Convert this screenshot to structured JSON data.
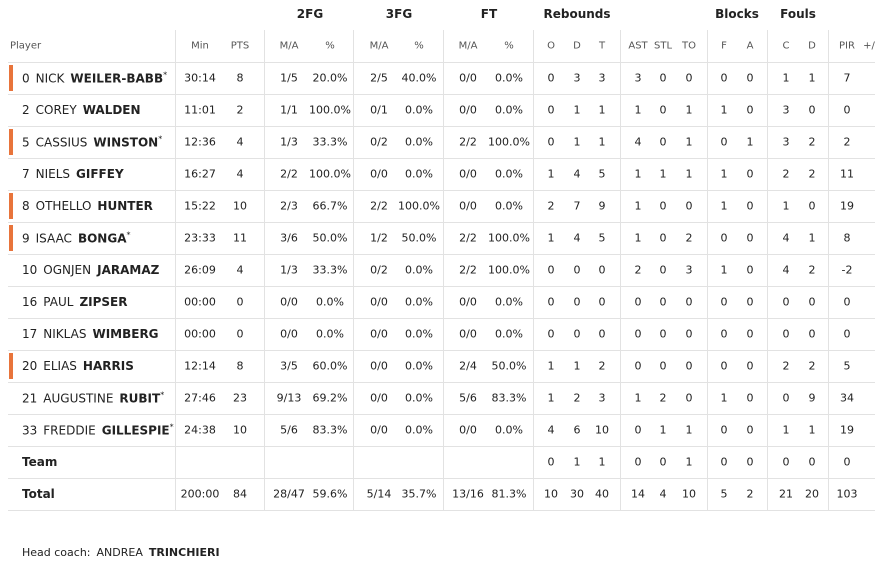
{
  "groups": [
    "2FG",
    "3FG",
    "FT",
    "Rebounds",
    "Blocks",
    "Fouls"
  ],
  "columns": [
    "Player",
    "Min",
    "PTS",
    "M/A",
    "%",
    "M/A",
    "%",
    "M/A",
    "%",
    "O",
    "D",
    "T",
    "AST",
    "STL",
    "TO",
    "F",
    "A",
    "C",
    "D",
    "PIR",
    "+/"
  ],
  "rows": [
    {
      "number": "0",
      "first": "NICK",
      "last": "WEILER-BABB",
      "marker": "*",
      "highlight": true,
      "cells": [
        "30:14",
        "8",
        "1/5",
        "20.0%",
        "2/5",
        "40.0%",
        "0/0",
        "0.0%",
        "0",
        "3",
        "3",
        "3",
        "0",
        "0",
        "0",
        "0",
        "1",
        "1",
        "7"
      ]
    },
    {
      "number": "2",
      "first": "COREY",
      "last": "WALDEN",
      "highlight": false,
      "cells": [
        "11:01",
        "2",
        "1/1",
        "100.0%",
        "0/1",
        "0.0%",
        "0/0",
        "0.0%",
        "0",
        "1",
        "1",
        "1",
        "0",
        "1",
        "1",
        "0",
        "3",
        "0",
        "0"
      ]
    },
    {
      "number": "5",
      "first": "CASSIUS",
      "last": "WINSTON",
      "marker": "*",
      "highlight": true,
      "cells": [
        "12:36",
        "4",
        "1/3",
        "33.3%",
        "0/2",
        "0.0%",
        "2/2",
        "100.0%",
        "0",
        "1",
        "1",
        "4",
        "0",
        "1",
        "0",
        "1",
        "3",
        "2",
        "2"
      ]
    },
    {
      "number": "7",
      "first": "NIELS",
      "last": "GIFFEY",
      "highlight": false,
      "cells": [
        "16:27",
        "4",
        "2/2",
        "100.0%",
        "0/0",
        "0.0%",
        "0/0",
        "0.0%",
        "1",
        "4",
        "5",
        "1",
        "1",
        "1",
        "1",
        "0",
        "2",
        "2",
        "11"
      ]
    },
    {
      "number": "8",
      "first": "OTHELLO",
      "last": "HUNTER",
      "highlight": true,
      "cells": [
        "15:22",
        "10",
        "2/3",
        "66.7%",
        "2/2",
        "100.0%",
        "0/0",
        "0.0%",
        "2",
        "7",
        "9",
        "1",
        "0",
        "0",
        "1",
        "0",
        "1",
        "0",
        "19"
      ]
    },
    {
      "number": "9",
      "first": "ISAAC",
      "last": "BONGA",
      "marker": "*",
      "highlight": true,
      "cells": [
        "23:33",
        "11",
        "3/6",
        "50.0%",
        "1/2",
        "50.0%",
        "2/2",
        "100.0%",
        "1",
        "4",
        "5",
        "1",
        "0",
        "2",
        "0",
        "0",
        "4",
        "1",
        "8"
      ]
    },
    {
      "number": "10",
      "first": "OGNJEN",
      "last": "JARAMAZ",
      "highlight": false,
      "cells": [
        "26:09",
        "4",
        "1/3",
        "33.3%",
        "0/2",
        "0.0%",
        "2/2",
        "100.0%",
        "0",
        "0",
        "0",
        "2",
        "0",
        "3",
        "1",
        "0",
        "4",
        "2",
        "-2"
      ]
    },
    {
      "number": "16",
      "first": "PAUL",
      "last": "ZIPSER",
      "highlight": false,
      "cells": [
        "00:00",
        "0",
        "0/0",
        "0.0%",
        "0/0",
        "0.0%",
        "0/0",
        "0.0%",
        "0",
        "0",
        "0",
        "0",
        "0",
        "0",
        "0",
        "0",
        "0",
        "0",
        "0"
      ]
    },
    {
      "number": "17",
      "first": "NIKLAS",
      "last": "WIMBERG",
      "highlight": false,
      "cells": [
        "00:00",
        "0",
        "0/0",
        "0.0%",
        "0/0",
        "0.0%",
        "0/0",
        "0.0%",
        "0",
        "0",
        "0",
        "0",
        "0",
        "0",
        "0",
        "0",
        "0",
        "0",
        "0"
      ]
    },
    {
      "number": "20",
      "first": "ELIAS",
      "last": "HARRIS",
      "highlight": true,
      "cells": [
        "12:14",
        "8",
        "3/5",
        "60.0%",
        "0/0",
        "0.0%",
        "2/4",
        "50.0%",
        "1",
        "1",
        "2",
        "0",
        "0",
        "0",
        "0",
        "0",
        "2",
        "2",
        "5"
      ]
    },
    {
      "number": "21",
      "first": "AUGUSTINE",
      "last": "RUBIT",
      "marker": "*",
      "highlight": false,
      "cells": [
        "27:46",
        "23",
        "9/13",
        "69.2%",
        "0/0",
        "0.0%",
        "5/6",
        "83.3%",
        "1",
        "2",
        "3",
        "1",
        "2",
        "0",
        "1",
        "0",
        "0",
        "9",
        "34"
      ]
    },
    {
      "number": "33",
      "first": "FREDDIE",
      "last": "GILLESPIE",
      "marker": "*",
      "highlight": false,
      "cells": [
        "24:38",
        "10",
        "5/6",
        "83.3%",
        "0/0",
        "0.0%",
        "0/0",
        "0.0%",
        "4",
        "6",
        "10",
        "0",
        "1",
        "1",
        "0",
        "0",
        "1",
        "1",
        "19"
      ]
    },
    {
      "label": "Team",
      "highlight": false,
      "cells": [
        null,
        null,
        null,
        null,
        null,
        null,
        null,
        null,
        "0",
        "1",
        "1",
        "0",
        "0",
        "1",
        "0",
        "0",
        "0",
        "0",
        "0"
      ]
    },
    {
      "label": "Total",
      "highlight": false,
      "cells": [
        "200:00",
        "84",
        "28/47",
        "59.6%",
        "5/14",
        "35.7%",
        "13/16",
        "81.3%",
        "10",
        "30",
        "40",
        "14",
        "4",
        "10",
        "5",
        "2",
        "21",
        "20",
        "103"
      ]
    }
  ],
  "footer": {
    "label": "Head coach:",
    "first": "ANDREA",
    "last": "TRINCHIERI"
  }
}
